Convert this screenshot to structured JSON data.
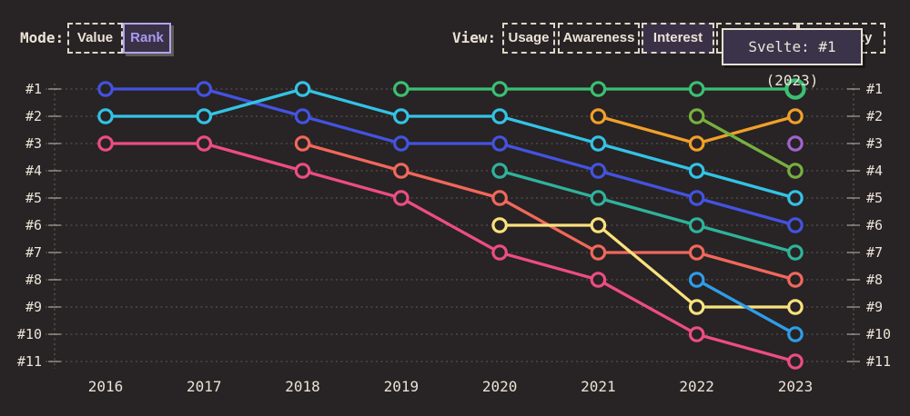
{
  "header": {
    "mode": {
      "label": "Mode:",
      "options": [
        {
          "label": "Value",
          "selected": false
        },
        {
          "label": "Rank",
          "selected": true
        }
      ]
    },
    "view": {
      "label": "View:",
      "options": [
        {
          "label": "Usage",
          "selected": false
        },
        {
          "label": "Awareness",
          "selected": false
        },
        {
          "label": "Interest",
          "selected": true
        },
        {
          "label": "Retention",
          "selected": false
        },
        {
          "label": "Positivity",
          "selected": false
        }
      ]
    }
  },
  "tooltip": {
    "text": "Svelte: #1 (2023)"
  },
  "colors": {
    "background": "#282324",
    "text_cream": "#ebe3d7",
    "grid": "#d8d0c4",
    "button_fill": "#3b3147",
    "rank_accent": "#a79af0",
    "tooltip_bg": "#3b3349"
  },
  "chart_data": {
    "type": "line",
    "subtype": "bump-rank-chart",
    "title": "",
    "xlabel": "",
    "ylabel": "",
    "x": [
      2016,
      2017,
      2018,
      2019,
      2020,
      2021,
      2022,
      2023
    ],
    "x_labels": [
      "2016",
      "2017",
      "2018",
      "2019",
      "2020",
      "2021",
      "2022",
      "2023"
    ],
    "y_labels": [
      "#1",
      "#2",
      "#3",
      "#4",
      "#5",
      "#6",
      "#7",
      "#8",
      "#9",
      "#10",
      "#11"
    ],
    "y_axis": "rank-inverted-both-sides",
    "grid": "dotted-horizontal",
    "legend_position": "none",
    "series": [
      {
        "name": "royal-blue",
        "color": "#4353e0",
        "ranks": [
          1,
          1,
          2,
          3,
          3,
          4,
          5,
          6
        ]
      },
      {
        "name": "cyan",
        "color": "#33c3e6",
        "ranks": [
          2,
          2,
          1,
          2,
          2,
          3,
          4,
          5
        ]
      },
      {
        "name": "pink",
        "color": "#ec4d83",
        "ranks": [
          3,
          3,
          4,
          5,
          7,
          8,
          10,
          11
        ]
      },
      {
        "name": "salmon",
        "color": "#f0685c",
        "ranks": [
          null,
          null,
          3,
          4,
          5,
          7,
          7,
          8
        ]
      },
      {
        "name": "svelte-green",
        "color": "#3bbf73",
        "ranks": [
          null,
          null,
          null,
          1,
          1,
          1,
          1,
          1
        ]
      },
      {
        "name": "teal",
        "color": "#2fb39b",
        "ranks": [
          null,
          null,
          null,
          null,
          4,
          5,
          6,
          7
        ]
      },
      {
        "name": "pale-yellow",
        "color": "#f9e27e",
        "ranks": [
          null,
          null,
          null,
          null,
          6,
          6,
          9,
          9
        ]
      },
      {
        "name": "amber-orange",
        "color": "#f0a02a",
        "ranks": [
          null,
          null,
          null,
          null,
          null,
          2,
          3,
          2
        ]
      },
      {
        "name": "olive-green",
        "color": "#77b040",
        "ranks": [
          null,
          null,
          null,
          null,
          null,
          null,
          2,
          4
        ]
      },
      {
        "name": "azure-blue",
        "color": "#2f9de8",
        "ranks": [
          null,
          null,
          null,
          null,
          null,
          null,
          8,
          10
        ]
      },
      {
        "name": "purple",
        "color": "#a163cf",
        "ranks": [
          null,
          null,
          null,
          null,
          null,
          null,
          null,
          3
        ]
      }
    ],
    "highlight": {
      "series": "svelte-green",
      "x": 2023,
      "rank": 1
    }
  }
}
